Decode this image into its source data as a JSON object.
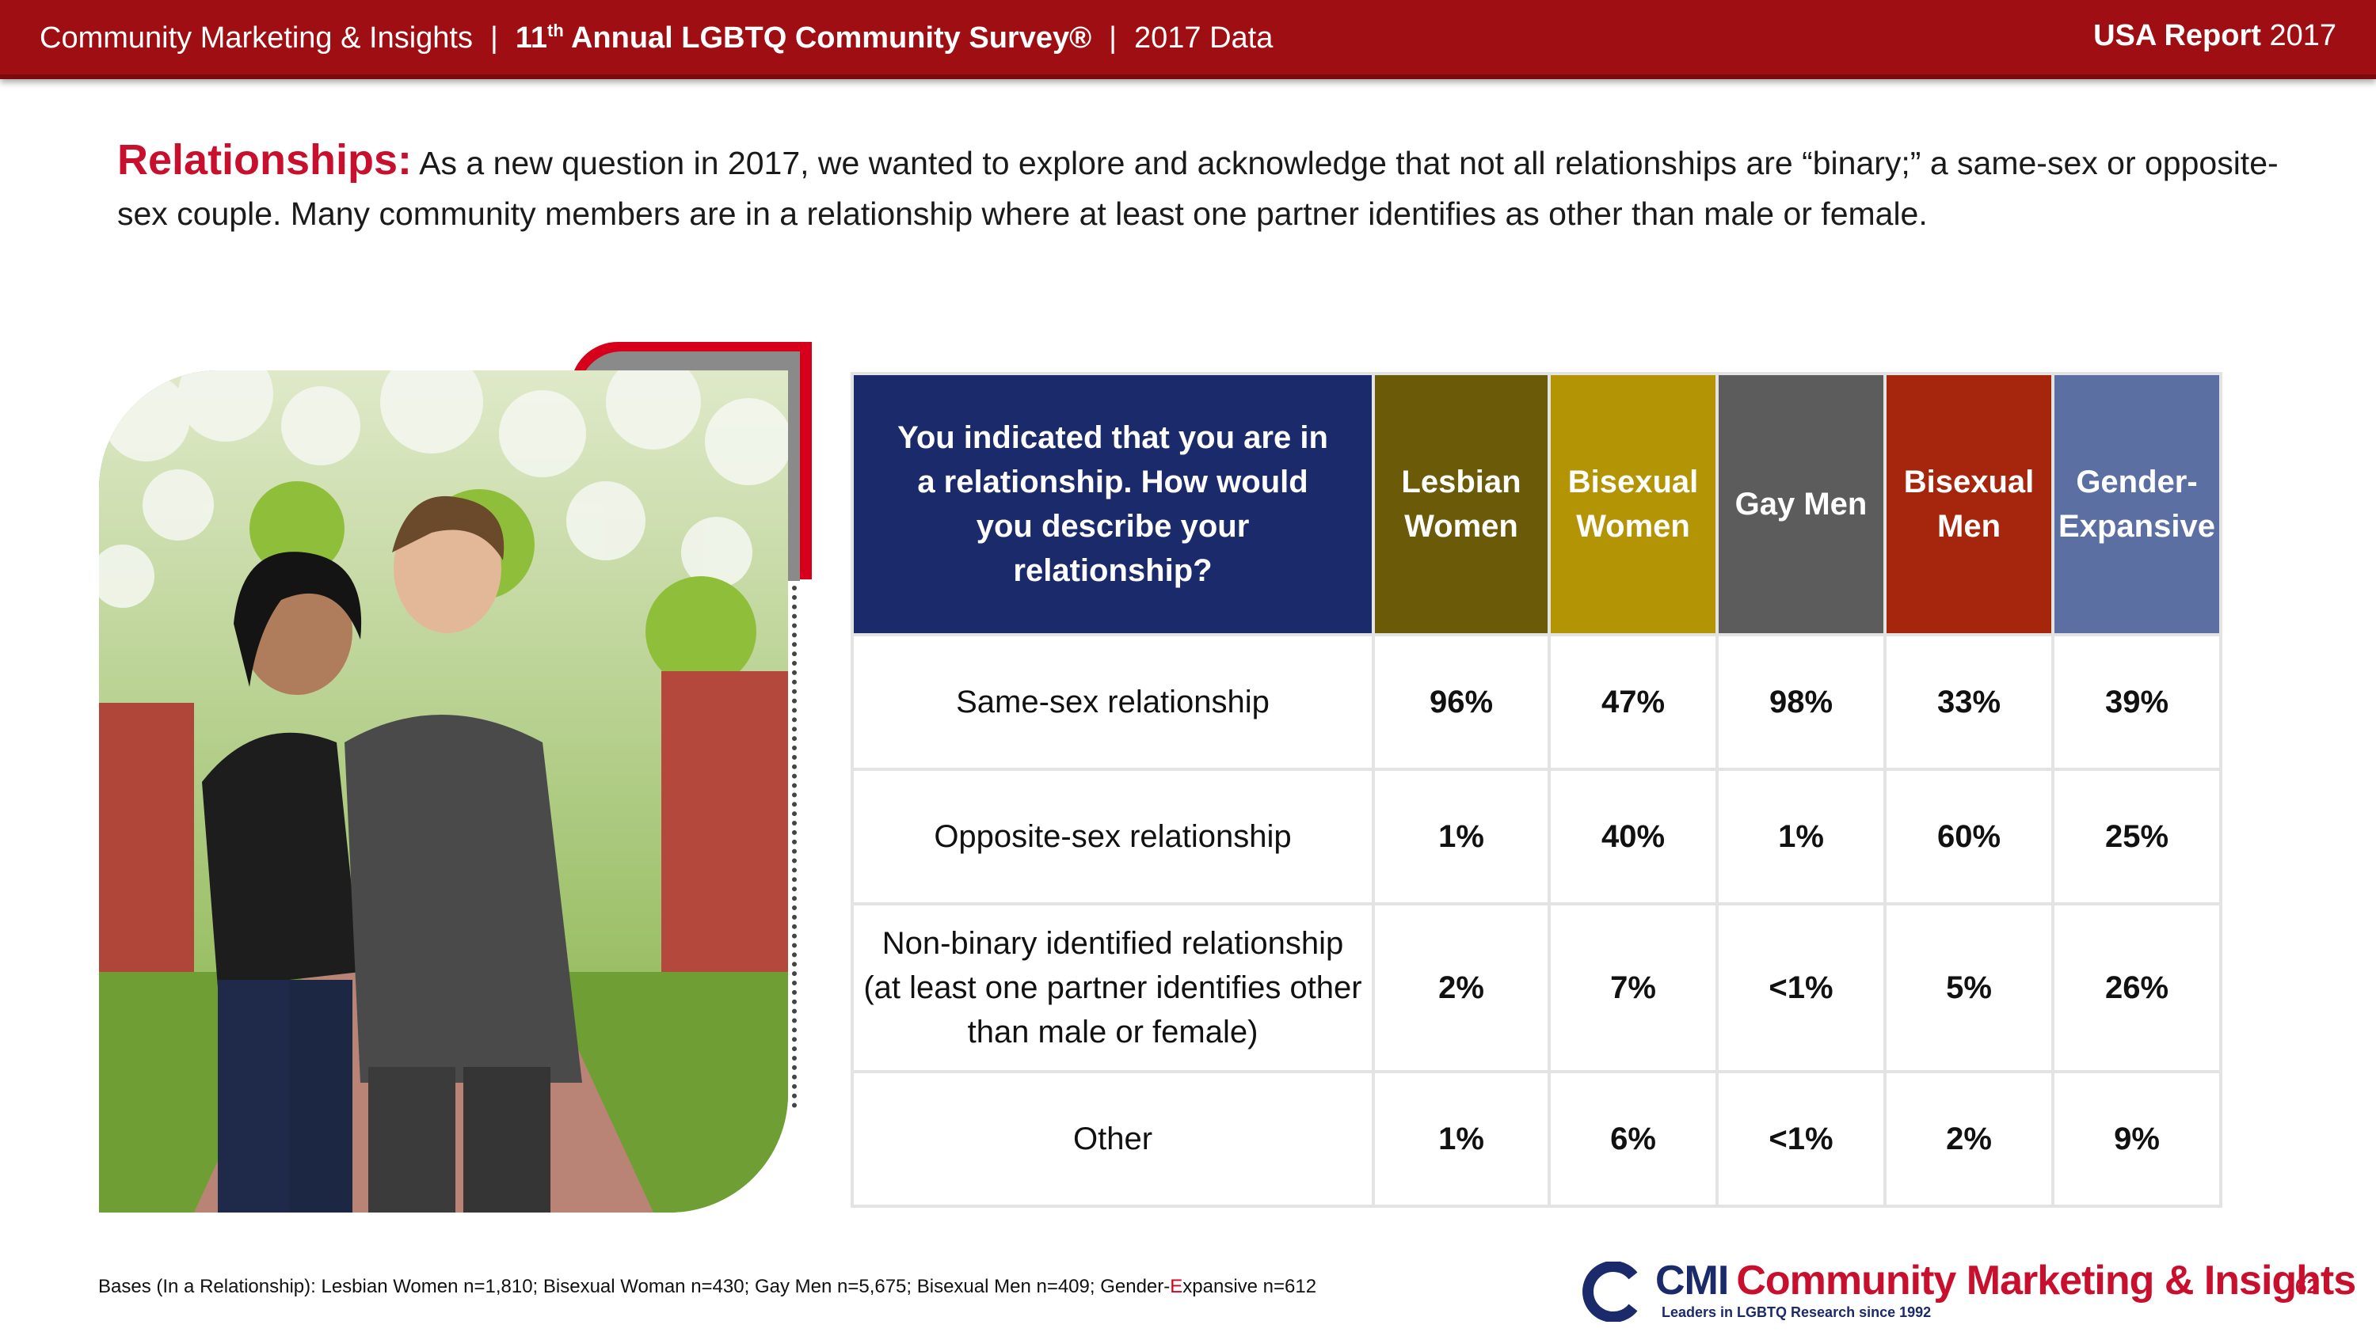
{
  "header": {
    "org": "Community Marketing & Insights",
    "survey_prefix": "11",
    "survey_sup": "th",
    "survey_name": "Annual LGBTQ Community Survey®",
    "data_year": "2017 Data",
    "report_bold": "USA Report",
    "report_year": "2017"
  },
  "intro": {
    "lead": "Relationships:",
    "text": "As a new question in 2017, we wanted to explore and acknowledge that not all relationships are “binary;” a same-sex or opposite-sex couple. Many community members are in a relationship where at least one partner identifies as other than male or female."
  },
  "table": {
    "question": "You indicated that you are in a relationship. How would you describe your relationship?",
    "columns": [
      {
        "label": "Lesbian Women",
        "color": "#6b5a07"
      },
      {
        "label": "Bisexual Women",
        "color": "#b39405"
      },
      {
        "label": "Gay Men",
        "color": "#5c5c5c"
      },
      {
        "label": "Bisexual Men",
        "color": "#a6260d"
      },
      {
        "label": "Gender-Expansive",
        "color": "#5b6fa3"
      }
    ],
    "rows": [
      {
        "label": "Same-sex relationship",
        "values": [
          "96%",
          "47%",
          "98%",
          "33%",
          "39%"
        ]
      },
      {
        "label": "Opposite-sex relationship",
        "values": [
          "1%",
          "40%",
          "1%",
          "60%",
          "25%"
        ]
      },
      {
        "label": "Non-binary identified relationship (at least one partner identifies other than male or female)",
        "values": [
          "2%",
          "7%",
          "<1%",
          "5%",
          "26%"
        ]
      },
      {
        "label": "Other",
        "values": [
          "1%",
          "6%",
          "<1%",
          "2%",
          "9%"
        ]
      }
    ]
  },
  "footnote": {
    "before": "Bases (In a Relationship): Lesbian Women n=1,810; Bisexual Woman n=430; Gay Men n=5,675; Bisexual Men n=409; Gender-",
    "red": "E",
    "after": "xpansive n=612"
  },
  "logo": {
    "cmi": "CMI",
    "name": "Community Marketing & Insights",
    "tagline": "Leaders in LGBTQ Research since 1992"
  },
  "page_number": "62",
  "colors": {
    "header_red": "#9e0e12",
    "accent_red": "#c8102e",
    "question_navy": "#1b2a6b"
  }
}
